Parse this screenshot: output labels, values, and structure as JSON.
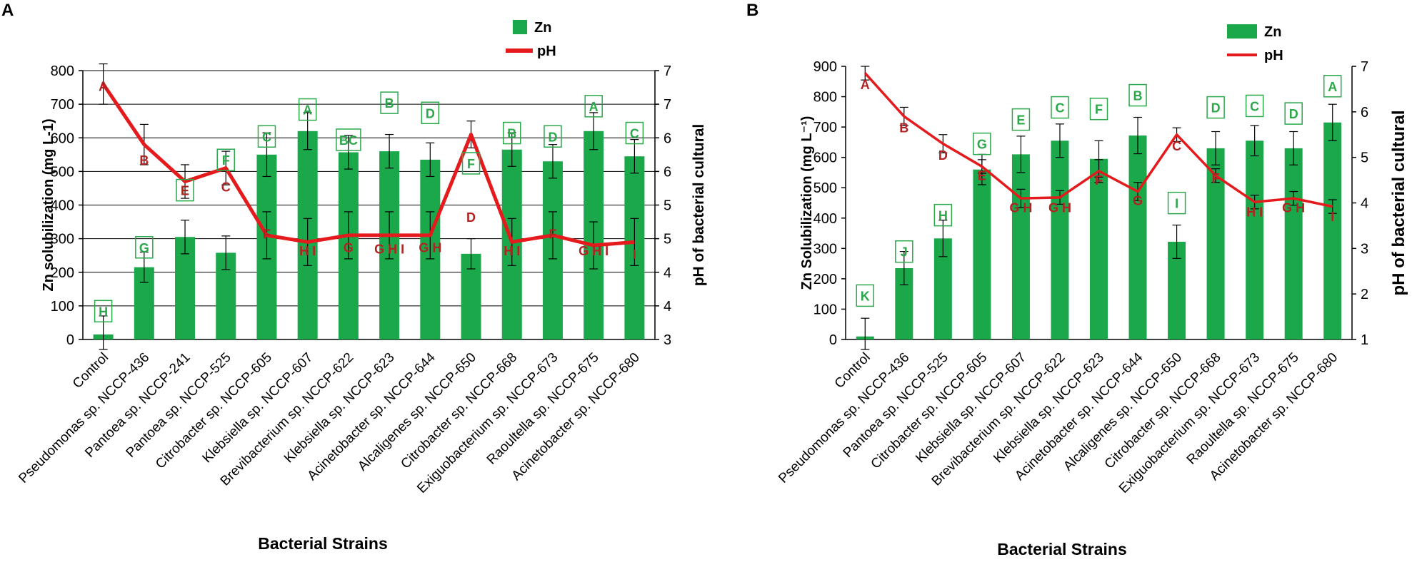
{
  "colors": {
    "bar": "#1aa84a",
    "bar_letter": "#2aa84a",
    "line": "#e41a1c",
    "ph_letter": "#b22222",
    "axis": "#000000",
    "grid": "#000000"
  },
  "chart_data": [
    {
      "type": "bar",
      "panel": "A",
      "title": "",
      "xlabel": "Bacterial Strains",
      "ylabel": "Zn solubilization (mg L-1)",
      "y2label": "pH of bacterial cultural",
      "ylim": [
        0,
        800
      ],
      "yticks": [
        0,
        100,
        200,
        300,
        400,
        500,
        600,
        700,
        800
      ],
      "y2lim": [
        3,
        7
      ],
      "y2ticks": [
        "3",
        "4",
        "4",
        "5",
        "5",
        "6",
        "6",
        "7",
        "7"
      ],
      "grid": true,
      "legend_position": "top-right",
      "legend": [
        {
          "label": "Zn",
          "kind": "bar"
        },
        {
          "label": "pH",
          "kind": "line"
        }
      ],
      "categories": [
        "Control",
        "Pseudomonas sp. NCCP-436",
        "Pantoea sp. NCCP-241",
        "Pantoea sp. NCCP-525",
        "Citrobacter sp. NCCP-605",
        "Klebsiella sp. NCCP-607",
        "Brevibacterium sp. NCCP-622",
        "Klebsiella sp. NCCP-623",
        "Acinetobacter sp. NCCP-644",
        "Alcaligenes sp. NCCP-650",
        "Citrobacter sp. NCCP-668",
        "Exiguobacterium sp. NCCP-673",
        "Raoultella sp. NCCP-675",
        "Acinetobacter sp. NCCP-680"
      ],
      "series": [
        {
          "name": "Zn",
          "axis": "left",
          "values": [
            15,
            215,
            305,
            258,
            550,
            620,
            557,
            560,
            535,
            255,
            565,
            530,
            620,
            545
          ],
          "errors": [
            55,
            45,
            50,
            50,
            65,
            55,
            50,
            50,
            50,
            45,
            50,
            50,
            55,
            50
          ],
          "letters": [
            "H",
            "G",
            "E",
            "F",
            "C",
            "A",
            "BC",
            "B",
            "D",
            "F",
            "B",
            "D",
            "A",
            "C"
          ],
          "letter_values": [
            80,
            270,
            440,
            530,
            600,
            680,
            590,
            700,
            670,
            520,
            610,
            600,
            690,
            610
          ]
        },
        {
          "name": "pH",
          "axis": "right",
          "values": [
            6.8,
            5.9,
            5.35,
            5.55,
            4.55,
            4.45,
            4.55,
            4.55,
            4.55,
            6.05,
            4.45,
            4.55,
            4.4,
            4.45
          ],
          "errors": [
            0.3,
            0.3,
            0.25,
            0.25,
            0.35,
            0.35,
            0.35,
            0.35,
            0.35,
            0.2,
            0.35,
            0.35,
            0.35,
            0.35
          ],
          "letters": [
            "A",
            "B",
            "E",
            "C",
            "F",
            "H I",
            "G",
            "G H I",
            "G H",
            "D",
            "H I",
            "F",
            "G H I",
            "I"
          ],
          "letter_values": [
            6.7,
            5.6,
            5.15,
            5.2,
            4.5,
            4.25,
            4.3,
            4.28,
            4.3,
            4.75,
            4.25,
            4.5,
            4.25,
            4.2
          ]
        }
      ]
    },
    {
      "type": "bar",
      "panel": "B",
      "title": "",
      "xlabel": "Bacterial Strains",
      "ylabel": "Zn Solubilization  (mg L⁻¹)",
      "y2label": "pH of bacterial cultural",
      "ylim": [
        0,
        900
      ],
      "yticks": [
        0,
        100,
        200,
        300,
        400,
        500,
        600,
        700,
        800,
        900
      ],
      "y2lim": [
        1,
        7
      ],
      "y2ticks": [
        "1",
        "2",
        "3",
        "4",
        "5",
        "6",
        "7"
      ],
      "grid": false,
      "legend_position": "top-right",
      "legend": [
        {
          "label": "Zn",
          "kind": "bar"
        },
        {
          "label": "pH",
          "kind": "line"
        }
      ],
      "categories": [
        "Control",
        "Pseudomonas sp. NCCP-436",
        "Pantoea sp. NCCP-525",
        "Citrobacter sp. NCCP-605",
        "Klebsiella sp. NCCP-607",
        "Brevibacterium sp. NCCP-622",
        "Klebsiella sp. NCCP-623",
        "Acinetobacter sp. NCCP-644",
        "Alcaligenes sp. NCCP-650",
        "Citrobacter sp. NCCP-668",
        "Exiguobacterium sp. NCCP-673",
        "Raoultella sp. NCCP-675",
        "Acinetobacter sp. NCCP-680"
      ],
      "series": [
        {
          "name": "Zn",
          "axis": "left",
          "values": [
            10,
            235,
            333,
            560,
            610,
            655,
            595,
            672,
            322,
            630,
            655,
            630,
            715
          ],
          "errors": [
            60,
            55,
            60,
            50,
            60,
            55,
            60,
            60,
            55,
            55,
            50,
            55,
            60
          ],
          "letters": [
            "K",
            "J",
            "H",
            "G",
            "E",
            "C",
            "F",
            "B",
            "I",
            "D",
            "C",
            "D",
            "A"
          ],
          "letter_values": [
            140,
            285,
            405,
            640,
            720,
            760,
            755,
            800,
            445,
            760,
            765,
            740,
            830
          ]
        },
        {
          "name": "pH",
          "axis": "right",
          "values": [
            6.85,
            5.9,
            5.3,
            4.8,
            4.1,
            4.12,
            4.7,
            4.25,
            5.5,
            4.6,
            4.02,
            4.1,
            3.92
          ],
          "errors": [
            0.15,
            0.2,
            0.2,
            0.15,
            0.2,
            0.15,
            0.25,
            0.2,
            0.15,
            0.15,
            0.15,
            0.15,
            0.15
          ],
          "letters": [
            "A",
            "B",
            "D",
            "E",
            "G H",
            "G H",
            "F",
            "G",
            "C",
            "F",
            "H I",
            "G H",
            "I"
          ],
          "letter_values": [
            6.5,
            5.55,
            4.95,
            4.5,
            3.8,
            3.8,
            4.4,
            3.95,
            5.15,
            4.45,
            3.7,
            3.8,
            3.6
          ]
        }
      ]
    }
  ]
}
